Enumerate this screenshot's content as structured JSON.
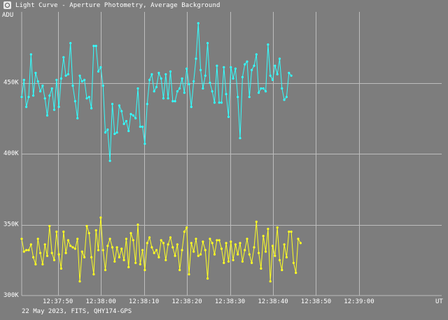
{
  "window": {
    "title": "Light Curve - Aperture Photometry, Average Background",
    "icon": "app-icon"
  },
  "footer": {
    "text": "22 May 2023, FITS, QHY174-GPS"
  },
  "colors": {
    "background": "#7d7d7d",
    "grid": "#bdbdbd",
    "series_cyan": "#33ffff",
    "series_yellow": "#ffff22"
  },
  "chart_data": {
    "type": "line",
    "title": "Light Curve - Aperture Photometry, Average Background",
    "ylabel": "ADU",
    "xlabel": "UT",
    "ylim": [
      300000,
      500000
    ],
    "xlim": [
      -4.2,
      44.6
    ],
    "grid": true,
    "y_ticks": [
      {
        "value": 300000,
        "label": "300K"
      },
      {
        "value": 350000,
        "label": "350K"
      },
      {
        "value": 400000,
        "label": "400K"
      },
      {
        "value": 450000,
        "label": "450K"
      }
    ],
    "x_ticks": [
      {
        "value": 0,
        "label": "12:37:50"
      },
      {
        "value": 5,
        "label": "12:38:00"
      },
      {
        "value": 10,
        "label": "12:38:10"
      },
      {
        "value": 15,
        "label": "12:38:20"
      },
      {
        "value": 20,
        "label": "12:38:30"
      },
      {
        "value": 25,
        "label": "12:38:40"
      },
      {
        "value": 30,
        "label": "12:38:50"
      },
      {
        "value": 35,
        "label": "12:39:00"
      }
    ],
    "x_start": -4.2,
    "x_step": 0.27,
    "series": [
      {
        "color": "#33ffff",
        "values": [
          440000,
          452000,
          433000,
          440000,
          470000,
          441000,
          457000,
          451000,
          444000,
          448000,
          439000,
          427000,
          441000,
          446000,
          431000,
          452000,
          433000,
          453000,
          468000,
          455000,
          456000,
          478000,
          448000,
          437000,
          425000,
          455000,
          451000,
          452000,
          439000,
          440000,
          432000,
          476000,
          476000,
          458000,
          461000,
          448000,
          415000,
          417000,
          395000,
          435000,
          414000,
          415000,
          434000,
          430000,
          421000,
          423000,
          416000,
          428000,
          427000,
          425000,
          446000,
          419000,
          419000,
          407000,
          435000,
          452000,
          456000,
          444000,
          447000,
          457000,
          453000,
          439000,
          456000,
          439000,
          458000,
          437000,
          437000,
          444000,
          446000,
          453000,
          443000,
          460000,
          449000,
          433000,
          451000,
          467000,
          492000,
          459000,
          446000,
          455000,
          478000,
          450000,
          444000,
          436000,
          462000,
          436000,
          436000,
          461000,
          442000,
          426000,
          461000,
          453000,
          460000,
          440000,
          411000,
          454000,
          463000,
          465000,
          440000,
          459000,
          462000,
          470000,
          443000,
          446000,
          446000,
          444000,
          477000,
          455000,
          452000,
          462000,
          456000,
          467000,
          446000,
          438000,
          440000,
          457000,
          455000
        ]
      },
      {
        "color": "#ffff22",
        "values": [
          340000,
          331000,
          332000,
          332000,
          336000,
          327000,
          322000,
          340000,
          330000,
          322000,
          336000,
          328000,
          349000,
          330000,
          325000,
          345000,
          329000,
          319000,
          345000,
          330000,
          339000,
          335000,
          334000,
          333000,
          340000,
          310000,
          331000,
          327000,
          349000,
          344000,
          327000,
          315000,
          346000,
          332000,
          355000,
          332000,
          318000,
          335000,
          340000,
          334000,
          324000,
          334000,
          327000,
          333000,
          325000,
          340000,
          320000,
          344000,
          339000,
          323000,
          350000,
          322000,
          332000,
          318000,
          337000,
          341000,
          334000,
          330000,
          332000,
          327000,
          339000,
          337000,
          325000,
          336000,
          341000,
          334000,
          328000,
          336000,
          318000,
          332000,
          345000,
          348000,
          315000,
          337000,
          331000,
          340000,
          328000,
          329000,
          338000,
          332000,
          312000,
          340000,
          337000,
          329000,
          339000,
          339000,
          333000,
          323000,
          337000,
          324000,
          338000,
          325000,
          336000,
          329000,
          337000,
          324000,
          332000,
          340000,
          329000,
          323000,
          334000,
          352000,
          330000,
          319000,
          342000,
          331000,
          347000,
          310000,
          335000,
          328000,
          348000,
          325000,
          318000,
          336000,
          327000,
          345000,
          345000,
          323000,
          316000,
          340000,
          337000
        ]
      }
    ]
  }
}
